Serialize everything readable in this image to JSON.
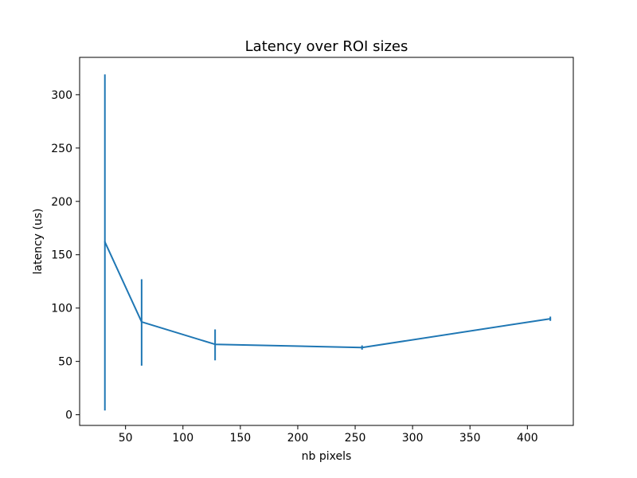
{
  "chart_data": {
    "type": "line",
    "title": "Latency over ROI sizes",
    "xlabel": "nb pixels",
    "ylabel": "latency (us)",
    "xlim": [
      10,
      440
    ],
    "ylim": [
      -10,
      335
    ],
    "xticks": [
      50,
      100,
      150,
      200,
      250,
      300,
      350,
      400
    ],
    "yticks": [
      0,
      50,
      100,
      150,
      200,
      250,
      300
    ],
    "grid": false,
    "legend": "none",
    "series": [
      {
        "color": "#1f77b4",
        "points": [
          {
            "x": 32,
            "y": 162,
            "err_low": 4,
            "err_high": 319
          },
          {
            "x": 64,
            "y": 87,
            "err_low": 46,
            "err_high": 127
          },
          {
            "x": 128,
            "y": 66,
            "err_low": 51,
            "err_high": 80
          },
          {
            "x": 256,
            "y": 63,
            "err_low": 61,
            "err_high": 65
          },
          {
            "x": 420,
            "y": 90,
            "err_low": 88,
            "err_high": 92
          }
        ]
      }
    ]
  }
}
